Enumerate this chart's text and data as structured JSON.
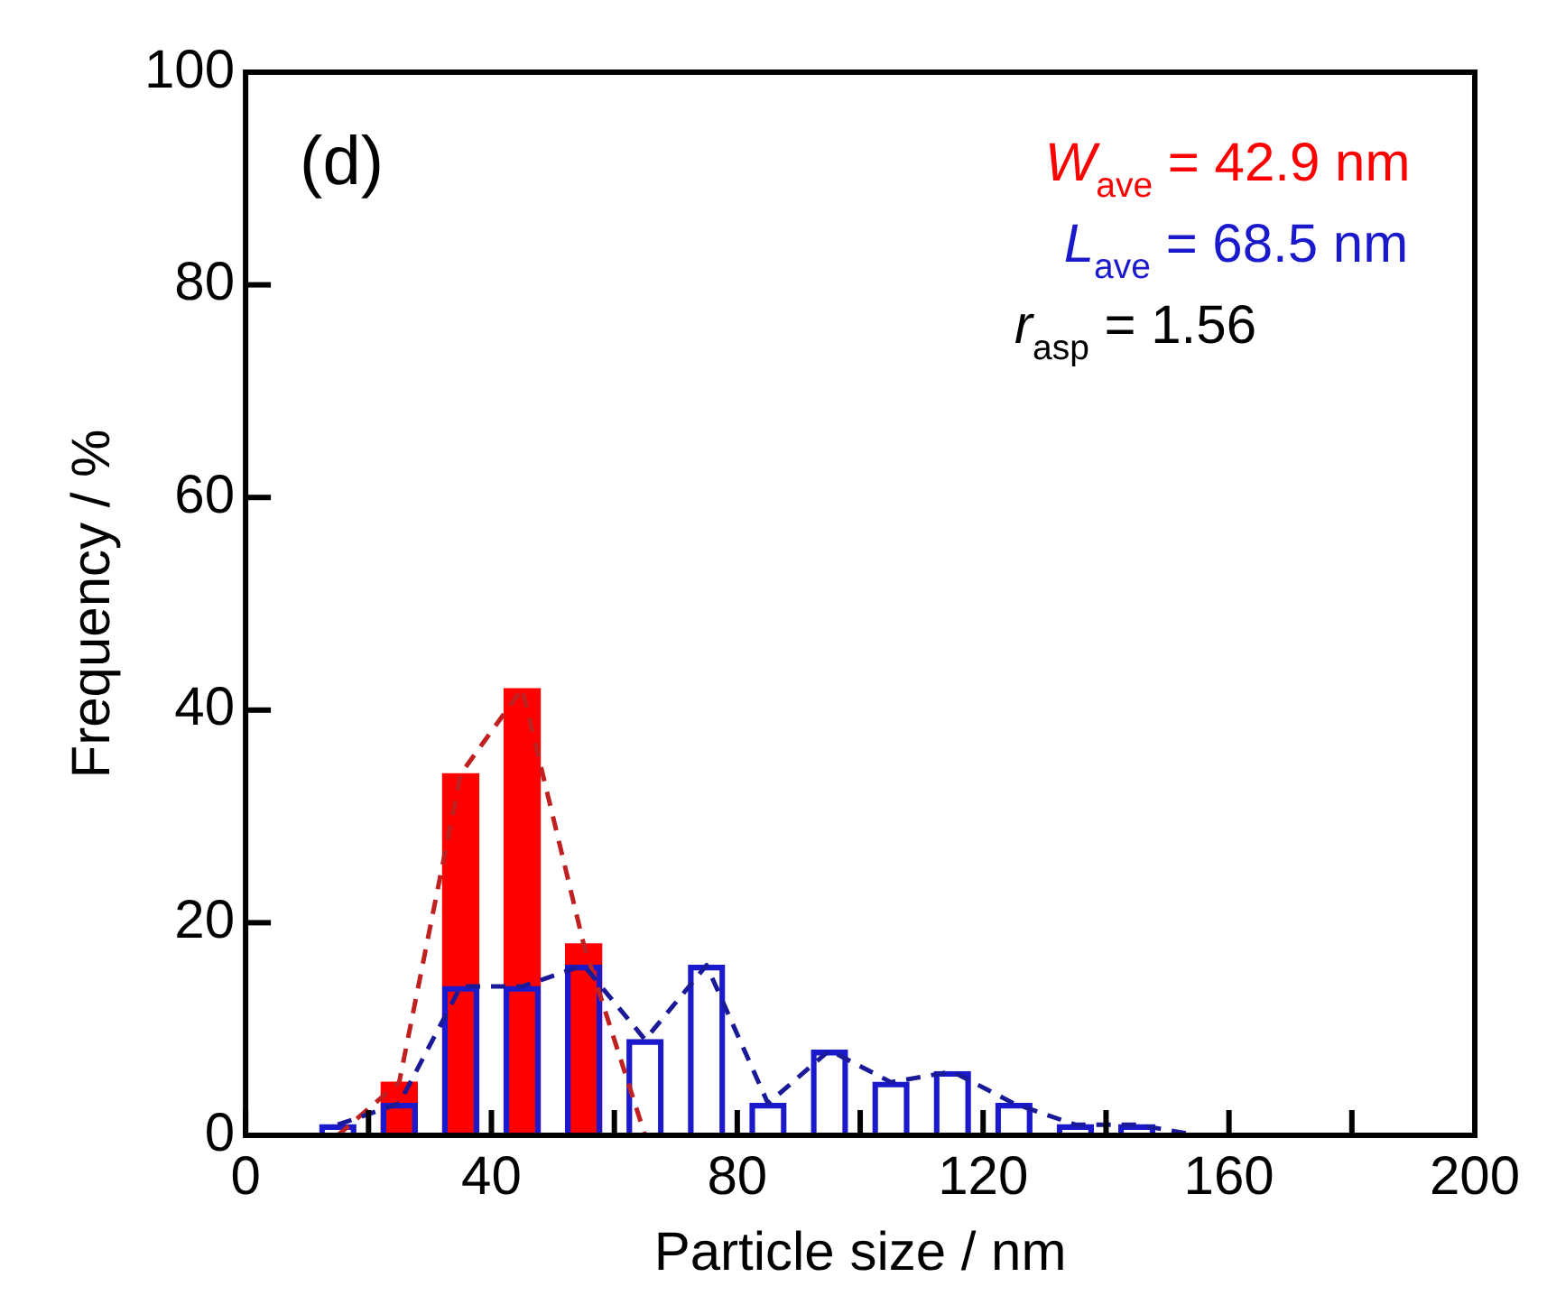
{
  "chart_data": {
    "type": "bar",
    "xlabel": "Particle size / nm",
    "ylabel": "Frequency / %",
    "xlim": [
      0,
      200
    ],
    "xticks": [
      0,
      {
        "value": 20,
        "label": null
      },
      40,
      {
        "value": 60,
        "label": null
      },
      80,
      {
        "value": 100,
        "label": null
      },
      120,
      {
        "value": 140,
        "label": null
      },
      160,
      {
        "value": 180,
        "label": null
      },
      200
    ],
    "ylim": [
      0,
      100
    ],
    "yticks": [
      0,
      20,
      40,
      60,
      80,
      100
    ],
    "grid": false,
    "legend": false,
    "series": [
      {
        "color": "#ff0000",
        "x": [
          25,
          35,
          45,
          55
        ],
        "values": [
          5,
          34,
          42,
          18
        ]
      },
      {
        "color": "#1a1acc",
        "x": [
          15,
          25,
          35,
          45,
          55,
          65,
          75,
          85,
          95,
          105,
          115,
          125,
          135,
          145
        ],
        "values": [
          1,
          3,
          14,
          14,
          16,
          9,
          16,
          3,
          8,
          5,
          6,
          3,
          1,
          1
        ]
      },
      {
        "type": "line",
        "color": "#c02020",
        "line_style": "dashed",
        "marker": "none",
        "x": [
          15,
          25,
          35,
          45,
          55,
          65
        ],
        "values": [
          0,
          5,
          34,
          42,
          18,
          0
        ]
      },
      {
        "type": "line",
        "color": "#1a1a99",
        "line_style": "dashed",
        "marker": "none",
        "x": [
          15,
          25,
          35,
          45,
          55,
          65,
          75,
          85,
          95,
          105,
          115,
          125,
          135,
          145,
          155
        ],
        "values": [
          1,
          3,
          14,
          14,
          16,
          9,
          16,
          3,
          8,
          5,
          6,
          3,
          1,
          1,
          0
        ]
      }
    ],
    "annotations": [
      "(d)",
      "W$_{ave}$ = 42.9 nm",
      "L$_{ave}$ = 68.5 nm",
      "r$_{asp}$ = 1.56"
    ]
  }
}
